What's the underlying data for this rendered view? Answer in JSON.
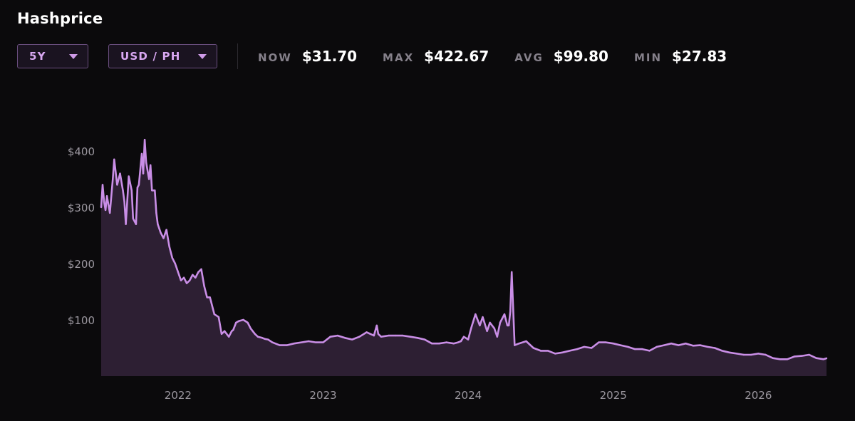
{
  "header": {
    "title": "Hashprice"
  },
  "controls": {
    "range": {
      "value": "5Y"
    },
    "unit": {
      "value": "USD / PH"
    }
  },
  "stats": {
    "now": {
      "label": "NOW",
      "value": "$31.70"
    },
    "max": {
      "label": "MAX",
      "value": "$422.67"
    },
    "avg": {
      "label": "AVG",
      "value": "$99.80"
    },
    "min": {
      "label": "MIN",
      "value": "$27.83"
    }
  },
  "colors": {
    "line": "#c98ee6",
    "fill": "#3a2740",
    "background": "#0b0a0c"
  },
  "chart_data": {
    "type": "area",
    "title": "",
    "xlabel": "",
    "ylabel": "",
    "x_range": [
      2021.47,
      2026.47
    ],
    "ylim": [
      0,
      400
    ],
    "grid": false,
    "y_ticks": [
      {
        "value": 100,
        "label": "$100"
      },
      {
        "value": 200,
        "label": "$200"
      },
      {
        "value": 300,
        "label": "$300"
      },
      {
        "value": 400,
        "label": "$400"
      }
    ],
    "x_ticks": [
      {
        "value": 2022,
        "label": "2022"
      },
      {
        "value": 2023,
        "label": "2023"
      },
      {
        "value": 2024,
        "label": "2024"
      },
      {
        "value": 2025,
        "label": "2025"
      },
      {
        "value": 2026,
        "label": "2026"
      }
    ],
    "series": [
      {
        "x": [
          2021.47,
          2021.48,
          2021.49,
          2021.5,
          2021.51,
          2021.53,
          2021.55,
          2021.56,
          2021.58,
          2021.6,
          2021.62,
          2021.63,
          2021.64,
          2021.66,
          2021.68,
          2021.69,
          2021.71,
          2021.72,
          2021.73,
          2021.75,
          2021.76,
          2021.77,
          2021.78,
          2021.8,
          2021.81,
          2021.82,
          2021.84,
          2021.85,
          2021.86,
          2021.88,
          2021.9,
          2021.92,
          2021.94,
          2021.96,
          2021.98,
          2022.0,
          2022.02,
          2022.04,
          2022.06,
          2022.08,
          2022.1,
          2022.12,
          2022.14,
          2022.16,
          2022.18,
          2022.2,
          2022.22,
          2022.25,
          2022.28,
          2022.3,
          2022.32,
          2022.35,
          2022.37,
          2022.38,
          2022.4,
          2022.42,
          2022.45,
          2022.48,
          2022.5,
          2022.53,
          2022.55,
          2022.58,
          2022.6,
          2022.62,
          2022.65,
          2022.7,
          2022.75,
          2022.8,
          2022.85,
          2022.9,
          2022.95,
          2023.0,
          2023.05,
          2023.1,
          2023.15,
          2023.2,
          2023.25,
          2023.3,
          2023.35,
          2023.37,
          2023.38,
          2023.4,
          2023.45,
          2023.5,
          2023.55,
          2023.6,
          2023.65,
          2023.7,
          2023.75,
          2023.8,
          2023.85,
          2023.9,
          2023.93,
          2023.95,
          2023.97,
          2024.0,
          2024.02,
          2024.05,
          2024.08,
          2024.1,
          2024.13,
          2024.15,
          2024.18,
          2024.2,
          2024.22,
          2024.25,
          2024.27,
          2024.28,
          2024.29,
          2024.3,
          2024.32,
          2024.35,
          2024.4,
          2024.45,
          2024.5,
          2024.55,
          2024.6,
          2024.65,
          2024.7,
          2024.75,
          2024.8,
          2024.85,
          2024.9,
          2024.95,
          2025.0,
          2025.05,
          2025.1,
          2025.15,
          2025.2,
          2025.25,
          2025.3,
          2025.35,
          2025.4,
          2025.45,
          2025.5,
          2025.55,
          2025.6,
          2025.65,
          2025.7,
          2025.75,
          2025.8,
          2025.85,
          2025.9,
          2025.95,
          2026.0,
          2026.05,
          2026.1,
          2026.15,
          2026.2,
          2026.25,
          2026.3,
          2026.35,
          2026.4,
          2026.45,
          2026.47
        ],
        "y": [
          300,
          340,
          310,
          295,
          320,
          290,
          350,
          385,
          340,
          360,
          330,
          310,
          270,
          355,
          330,
          280,
          270,
          335,
          340,
          395,
          360,
          420,
          380,
          350,
          375,
          330,
          330,
          290,
          270,
          255,
          245,
          260,
          230,
          210,
          200,
          185,
          170,
          175,
          165,
          170,
          180,
          175,
          185,
          190,
          160,
          140,
          140,
          110,
          105,
          75,
          80,
          70,
          80,
          82,
          95,
          98,
          100,
          95,
          85,
          75,
          70,
          68,
          66,
          65,
          60,
          55,
          55,
          58,
          60,
          62,
          60,
          60,
          70,
          72,
          68,
          65,
          70,
          78,
          72,
          90,
          75,
          70,
          72,
          72,
          72,
          70,
          68,
          65,
          58,
          58,
          60,
          58,
          60,
          62,
          70,
          65,
          85,
          110,
          90,
          105,
          80,
          95,
          85,
          70,
          95,
          110,
          90,
          90,
          115,
          185,
          55,
          58,
          62,
          50,
          45,
          45,
          40,
          42,
          45,
          48,
          52,
          50,
          60,
          60,
          58,
          55,
          52,
          48,
          48,
          45,
          52,
          55,
          58,
          55,
          58,
          54,
          55,
          52,
          50,
          45,
          42,
          40,
          38,
          38,
          40,
          38,
          32,
          30,
          30,
          35,
          36,
          38,
          32,
          30,
          31.7
        ]
      }
    ]
  }
}
